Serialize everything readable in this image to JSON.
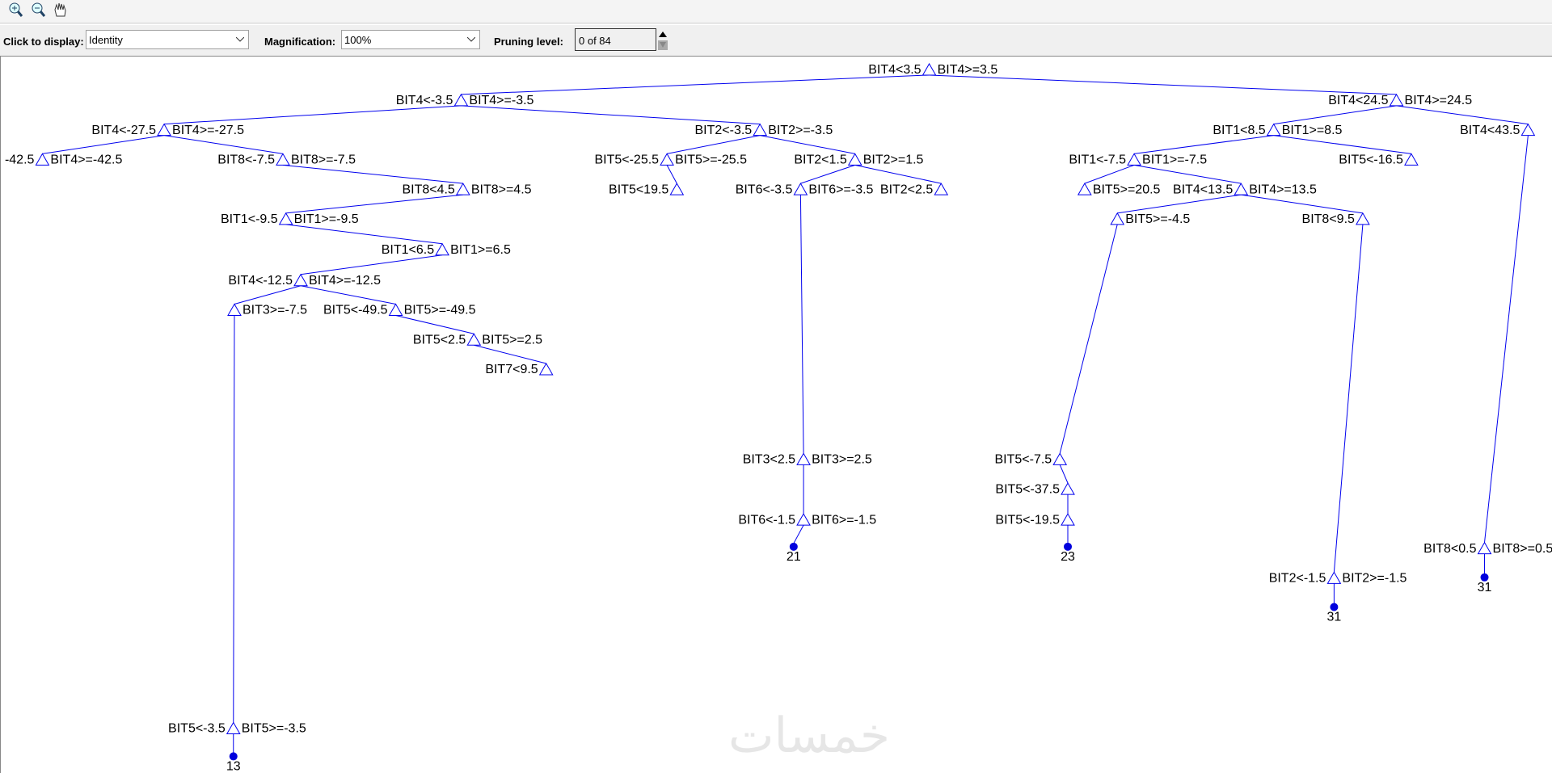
{
  "controls": {
    "display_label": "Click to display:",
    "display_value": "Identity",
    "magnification_label": "Magnification:",
    "magnification_value": "100%",
    "pruning_label": "Pruning level:",
    "pruning_value": "0 of 84"
  },
  "tree": {
    "left": "BIT4<3.5",
    "right": "BIT4>=3.5",
    "children": [
      {
        "left": "BIT4<-3.5",
        "right": "BIT4>=-3.5",
        "children": [
          {
            "left": "BIT4<-27.5",
            "right": "BIT4>=-27.5",
            "children": [
              {
                "left": "-42.5",
                "right": "BIT4>=-42.5"
              },
              {
                "left": "BIT8<-7.5",
                "right": "BIT8>=-7.5",
                "children": [
                  {
                    "left": "BIT8<4.5",
                    "right": "BIT8>=4.5",
                    "children": [
                      {
                        "left": "BIT1<-9.5",
                        "right": "BIT1>=-9.5",
                        "children": [
                          {
                            "left": "BIT1<6.5",
                            "right": "BIT1>=6.5",
                            "children": [
                              {
                                "left": "BIT4<-12.5",
                                "right": "BIT4>=-12.5",
                                "children": [
                                  {
                                    "right": "BIT3>=-7.5",
                                    "children": [
                                      {
                                        "left": "BIT5<-3.5",
                                        "right": "BIT5>=-3.5",
                                        "children": [
                                          {
                                            "label": "13"
                                          }
                                        ]
                                      }
                                    ]
                                  },
                                  {
                                    "left": "BIT5<-49.5",
                                    "right": "BIT5>=-49.5",
                                    "children": [
                                      {
                                        "left": "BIT5<2.5",
                                        "right": "BIT5>=2.5",
                                        "children": [
                                          {
                                            "left": "BIT7<9.5"
                                          }
                                        ]
                                      }
                                    ]
                                  }
                                ]
                              }
                            ]
                          }
                        ]
                      }
                    ]
                  }
                ]
              }
            ]
          },
          {
            "left": "BIT2<-3.5",
            "right": "BIT2>=-3.5",
            "children": [
              {
                "left": "BIT5<-25.5",
                "right": "BIT5>=-25.5",
                "children": [
                  {
                    "left": "BIT5<19.5"
                  }
                ]
              },
              {
                "left": "BIT2<1.5",
                "right": "BIT2>=1.5",
                "children": [
                  {
                    "left": "BIT6<-3.5",
                    "right": "BIT6>=-3.5",
                    "children": [
                      {
                        "left": "BIT3<2.5",
                        "right": "BIT3>=2.5",
                        "children": [
                          {
                            "left": "BIT6<-1.5",
                            "right": "BIT6>=-1.5",
                            "children": [
                              {
                                "label": "21"
                              }
                            ]
                          }
                        ]
                      }
                    ]
                  },
                  {
                    "left": "BIT2<2.5"
                  }
                ]
              }
            ]
          }
        ]
      },
      {
        "left": "BIT4<24.5",
        "right": "BIT4>=24.5",
        "children": [
          {
            "left": "BIT1<8.5",
            "right": "BIT1>=8.5",
            "children": [
              {
                "left": "BIT1<-7.5",
                "right": "BIT1>=-7.5",
                "children": [
                  {
                    "right": "BIT5>=20.5"
                  },
                  {
                    "left": "BIT4<13.5",
                    "right": "BIT4>=13.5",
                    "children": [
                      {
                        "right": "BIT5>=-4.5",
                        "children": [
                          {
                            "left": "BIT5<-7.5",
                            "children": [
                              {
                                "left": "BIT5<-37.5",
                                "children": [
                                  {
                                    "left": "BIT5<-19.5",
                                    "children": [
                                      {
                                        "label": "23"
                                      }
                                    ]
                                  }
                                ]
                              }
                            ]
                          }
                        ]
                      },
                      {
                        "left": "BIT8<9.5",
                        "children": [
                          {
                            "left": "BIT2<-1.5",
                            "right": "BIT2>=-1.5",
                            "children": [
                              {
                                "label": "31"
                              }
                            ]
                          }
                        ]
                      }
                    ]
                  }
                ]
              },
              {
                "left": "BIT5<-16.5"
              }
            ]
          },
          {
            "left": "BIT4<43.5",
            "children": [
              {
                "left": "BIT8<0.5",
                "right": "BIT8>=0.5",
                "children": [
                  {
                    "label": "31"
                  }
                ]
              }
            ]
          }
        ]
      }
    ]
  },
  "watermark": "خمسات"
}
